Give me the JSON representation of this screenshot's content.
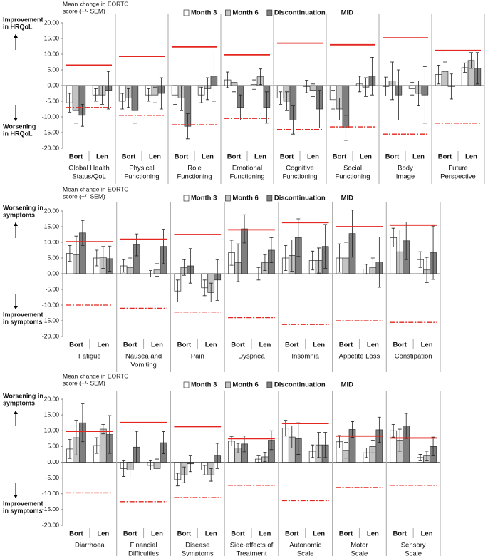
{
  "chart_data": [
    {
      "type": "bar",
      "ylabel": [
        "Mean change in EORTC",
        "score (+/- SEM)"
      ],
      "series": [
        {
          "name": "Month 3",
          "color": "#ffffff"
        },
        {
          "name": "Month 6",
          "color": "#c4c4c4"
        },
        {
          "name": "Discontinuation",
          "color": "#7f7f7f"
        }
      ],
      "mid": {
        "name": "MID",
        "color": "#e3261f"
      },
      "groups": [
        "Bort",
        "Len"
      ],
      "annotation_top": [
        "Improvement",
        "in HRQoL"
      ],
      "annotation_bottom": [
        "Worsening",
        "in HRQoL"
      ],
      "ylim": [
        -20,
        20
      ],
      "yticks": [
        {
          "value": 20,
          "label": "20.00"
        },
        {
          "value": 15,
          "label": "15.00"
        },
        {
          "value": 10,
          "label": "10.00"
        },
        {
          "value": 5,
          "label": "5.00"
        },
        {
          "value": 0,
          "label": "0.00"
        },
        {
          "value": -5,
          "label": "-5.00"
        },
        {
          "value": -10,
          "label": "-10.00"
        },
        {
          "value": -15,
          "label": "-15.00"
        },
        {
          "value": -20,
          "label": "-20.00"
        }
      ],
      "panels": [
        {
          "title": [
            "Global Health",
            "Status/QoL"
          ],
          "values": [
            [
              -5.5,
              -3
            ],
            [
              -8,
              -3
            ],
            [
              -9.5,
              -1.5
            ]
          ],
          "errors": [
            [
              3,
              2
            ],
            [
              4,
              3
            ],
            [
              3.5,
              6
            ]
          ],
          "mid": [
            6.5,
            -7
          ]
        },
        {
          "title": [
            "Physical",
            "Functioning"
          ],
          "values": [
            [
              -5,
              -3
            ],
            [
              -4,
              -3
            ],
            [
              -8,
              -2.5
            ]
          ],
          "errors": [
            [
              2.5,
              2
            ],
            [
              3,
              2.5
            ],
            [
              4,
              5
            ]
          ],
          "mid": [
            9.3,
            -9.5
          ]
        },
        {
          "title": [
            "Role",
            "Functioning"
          ],
          "values": [
            [
              -3,
              -3
            ],
            [
              -4,
              -1
            ],
            [
              -13,
              3
            ]
          ],
          "errors": [
            [
              3,
              2.5
            ],
            [
              4,
              3.5
            ],
            [
              4,
              8
            ]
          ],
          "mid": [
            12.3,
            -12.5
          ]
        },
        {
          "title": [
            "Emotional",
            "Functioning"
          ],
          "values": [
            [
              1.8,
              0.3
            ],
            [
              1,
              2.8
            ],
            [
              -7,
              -7
            ]
          ],
          "errors": [
            [
              2.5,
              1.5
            ],
            [
              3,
              2.5
            ],
            [
              4,
              5
            ]
          ],
          "mid": [
            9.8,
            -10.5
          ]
        },
        {
          "title": [
            "Cognitive",
            "Functioning"
          ],
          "values": [
            [
              -4,
              -0.3
            ],
            [
              -5,
              -1.5
            ],
            [
              -11,
              -7.5
            ]
          ],
          "errors": [
            [
              2,
              2
            ],
            [
              3,
              2
            ],
            [
              4.5,
              6
            ]
          ],
          "mid": [
            13.5,
            -14
          ]
        },
        {
          "title": [
            "Social",
            "Functioning"
          ],
          "values": [
            [
              -4.5,
              0.5
            ],
            [
              -7.5,
              -0.5
            ],
            [
              -13.5,
              3
            ]
          ],
          "errors": [
            [
              3,
              2.5
            ],
            [
              3.5,
              3
            ],
            [
              4,
              6
            ]
          ],
          "mid": [
            13,
            -13.2
          ]
        },
        {
          "title": [
            "Body",
            "Image"
          ],
          "values": [
            [
              -0.3,
              -1
            ],
            [
              1.5,
              -2.5
            ],
            [
              -3,
              -3
            ]
          ],
          "errors": [
            [
              3,
              2
            ],
            [
              6,
              4
            ],
            [
              8,
              9
            ]
          ],
          "mid": [
            15.2,
            -15.5
          ]
        },
        {
          "title": [
            "Future",
            "Perspective"
          ],
          "values": [
            [
              3.5,
              5.7
            ],
            [
              4.5,
              8
            ],
            [
              -0.3,
              5.5
            ]
          ],
          "errors": [
            [
              3,
              1.5
            ],
            [
              3,
              2.5
            ],
            [
              4,
              5
            ]
          ],
          "mid": [
            11.2,
            -12
          ]
        }
      ]
    },
    {
      "type": "bar",
      "ylabel": [
        "Mean change in EORTC",
        "score (+/- SEM)"
      ],
      "series": [
        {
          "name": "Month 3",
          "color": "#ffffff"
        },
        {
          "name": "Month 6",
          "color": "#c4c4c4"
        },
        {
          "name": "Discontinuation",
          "color": "#7f7f7f"
        }
      ],
      "mid": {
        "name": "MID",
        "color": "#e3261f"
      },
      "groups": [
        "Bort",
        "Len"
      ],
      "annotation_top": [
        "Worsening in",
        "symptoms"
      ],
      "annotation_bottom": [
        "Improvement",
        "in symptoms"
      ],
      "ylim": [
        -20,
        20
      ],
      "yticks": [
        {
          "value": 20,
          "label": "20.00"
        },
        {
          "value": 15,
          "label": "15.00"
        },
        {
          "value": 10,
          "label": "10.00"
        },
        {
          "value": 5,
          "label": "5.00"
        },
        {
          "value": 0,
          "label": "0.00"
        },
        {
          "value": -5,
          "label": "-5.00"
        },
        {
          "value": -10,
          "label": "-10.00"
        },
        {
          "value": -15,
          "label": "-15.00"
        },
        {
          "value": -20,
          "label": "-20.00"
        }
      ],
      "panels": [
        {
          "title": [
            "Fatigue"
          ],
          "values": [
            [
              6.5,
              5
            ],
            [
              6,
              5.2
            ],
            [
              13,
              4.8
            ]
          ],
          "errors": [
            [
              2.5,
              2.5
            ],
            [
              6,
              3.5
            ],
            [
              4,
              4
            ]
          ],
          "mid": [
            10.2,
            -10
          ]
        },
        {
          "title": [
            "Nausea and",
            "Vomiting"
          ],
          "values": [
            [
              2.5,
              0
            ],
            [
              2,
              1.2
            ],
            [
              9.2,
              8.7
            ]
          ],
          "errors": [
            [
              2,
              1
            ],
            [
              3,
              2
            ],
            [
              3.5,
              5.5
            ]
          ],
          "mid": [
            11,
            -11
          ]
        },
        {
          "title": [
            "Pain"
          ],
          "values": [
            [
              -5.5,
              -4.5
            ],
            [
              2,
              -6
            ],
            [
              2.5,
              -2
            ]
          ],
          "errors": [
            [
              3.5,
              2.5
            ],
            [
              2.5,
              3
            ],
            [
              5.5,
              6.5
            ]
          ],
          "mid": [
            12.5,
            -12.2
          ]
        },
        {
          "title": [
            "Dyspnea"
          ],
          "values": [
            [
              6.7,
              0
            ],
            [
              3.5,
              3.5
            ],
            [
              14.3,
              7.5
            ]
          ],
          "errors": [
            [
              4,
              2
            ],
            [
              6,
              2.5
            ],
            [
              4.5,
              4
            ]
          ],
          "mid": [
            14,
            -14
          ]
        },
        {
          "title": [
            "Insomnia"
          ],
          "values": [
            [
              5,
              4.2
            ],
            [
              5.8,
              4.2
            ],
            [
              11.5,
              8.7
            ]
          ],
          "errors": [
            [
              4,
              3
            ],
            [
              5,
              4
            ],
            [
              6,
              7
            ]
          ],
          "mid": [
            16.3,
            -16.2
          ]
        },
        {
          "title": [
            "Appetite Loss"
          ],
          "values": [
            [
              5,
              1.5
            ],
            [
              5,
              2
            ],
            [
              12.8,
              3.7
            ]
          ],
          "errors": [
            [
              4.5,
              1.5
            ],
            [
              5,
              3
            ],
            [
              7.5,
              8
            ]
          ],
          "mid": [
            15,
            -15
          ]
        },
        {
          "title": [
            "Constipation"
          ],
          "values": [
            [
              11.5,
              4.5
            ],
            [
              7,
              1.2
            ],
            [
              10.5,
              6.7
            ]
          ],
          "errors": [
            [
              3,
              2.5
            ],
            [
              7,
              4
            ],
            [
              6,
              8.5
            ]
          ],
          "mid": [
            15.5,
            -15.5
          ]
        }
      ]
    },
    {
      "type": "bar",
      "ylabel": [
        "Mean change in EORTC",
        "score (+/- SEM)"
      ],
      "series": [
        {
          "name": "Month 3",
          "color": "#ffffff"
        },
        {
          "name": "Month 6",
          "color": "#c4c4c4"
        },
        {
          "name": "Discontinuation",
          "color": "#7f7f7f"
        }
      ],
      "mid": {
        "name": "MID",
        "color": "#e3261f"
      },
      "groups": [
        "Bort",
        "Len"
      ],
      "annotation_top": [
        "Worsening in",
        "symptoms"
      ],
      "annotation_bottom": [
        "Improvement",
        "in symptoms"
      ],
      "ylim": [
        -20,
        20
      ],
      "yticks": [
        {
          "value": 20,
          "label": "20.00"
        },
        {
          "value": 15,
          "label": "15.00"
        },
        {
          "value": 10,
          "label": "10.00"
        },
        {
          "value": 5,
          "label": "5.00"
        },
        {
          "value": 0,
          "label": "0.00"
        },
        {
          "value": -5,
          "label": "-5.00"
        },
        {
          "value": -10,
          "label": "-10.00"
        },
        {
          "value": -15,
          "label": "-15.00"
        },
        {
          "value": -20,
          "label": "-20.00"
        }
      ],
      "panels": [
        {
          "title": [
            "Diarrhoea"
          ],
          "values": [
            [
              4.2,
              5.3
            ],
            [
              7.8,
              10.5
            ],
            [
              12.5,
              8.8
            ]
          ],
          "errors": [
            [
              3,
              2.5
            ],
            [
              5.5,
              1.5
            ],
            [
              6,
              6
            ]
          ],
          "mid": [
            9.8,
            -9.7
          ]
        },
        {
          "title": [
            "Financial",
            "Difficulties"
          ],
          "values": [
            [
              -2,
              -1
            ],
            [
              -2.5,
              -2
            ],
            [
              4.8,
              6.2
            ]
          ],
          "errors": [
            [
              2.5,
              1.5
            ],
            [
              2.5,
              3
            ],
            [
              5,
              3.5
            ]
          ],
          "mid": [
            12.6,
            -12.5
          ]
        },
        {
          "title": [
            "Disease",
            "Symptoms"
          ],
          "values": [
            [
              -5.5,
              -2.5
            ],
            [
              -4,
              -4
            ],
            [
              -0.5,
              2
            ]
          ],
          "errors": [
            [
              2,
              1.5
            ],
            [
              2.5,
              2
            ],
            [
              2.5,
              4
            ]
          ],
          "mid": [
            11.3,
            -11.2
          ]
        },
        {
          "title": [
            "Side-effects of",
            "Treatment"
          ],
          "values": [
            [
              6.7,
              1
            ],
            [
              4.5,
              1.7
            ],
            [
              5.8,
              7
            ]
          ],
          "errors": [
            [
              1.5,
              1
            ],
            [
              1.5,
              1.5
            ],
            [
              2.5,
              3
            ]
          ],
          "mid": [
            7.5,
            -7.3
          ]
        },
        {
          "title": [
            "Autonomic",
            "Scale"
          ],
          "values": [
            [
              10.8,
              3.5
            ],
            [
              8,
              5.5
            ],
            [
              7.5,
              5.5
            ]
          ],
          "errors": [
            [
              2.5,
              2
            ],
            [
              3.5,
              4
            ],
            [
              5,
              4
            ]
          ],
          "mid": [
            12.3,
            -12.2
          ]
        },
        {
          "title": [
            "Motor",
            "Scale"
          ],
          "values": [
            [
              6.5,
              3
            ],
            [
              3.8,
              5
            ],
            [
              10.4,
              10.3
            ]
          ],
          "errors": [
            [
              2,
              1.5
            ],
            [
              2.5,
              2
            ],
            [
              2.5,
              4
            ]
          ],
          "mid": [
            8.3,
            -8
          ]
        },
        {
          "title": [
            "Sensory",
            "Scale"
          ],
          "values": [
            [
              10,
              1.5
            ],
            [
              7,
              2
            ],
            [
              11.5,
              5
            ]
          ],
          "errors": [
            [
              2,
              1
            ],
            [
              3.5,
              1.5
            ],
            [
              4,
              3
            ]
          ],
          "mid": [
            7.7,
            -7.3
          ]
        }
      ]
    }
  ]
}
